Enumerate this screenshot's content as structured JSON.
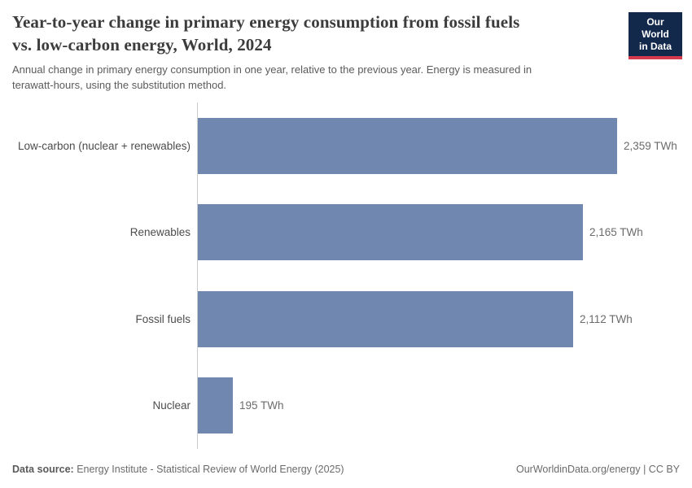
{
  "header": {
    "title_lines": [
      "Year-to-year change in primary energy consumption from fossil fuels",
      "vs. low-carbon energy, World, 2024"
    ],
    "subtitle_lines": [
      "Annual change in primary energy consumption in one year, relative to the previous year. Energy is measured in",
      "terawatt-hours, using the substitution method."
    ],
    "logo": {
      "line1": "Our World",
      "line2": "in Data",
      "background": "#12294b",
      "accent": "#d43a4b"
    }
  },
  "chart_data": {
    "type": "bar",
    "orientation": "horizontal",
    "title": "Year-to-year change in primary energy consumption from fossil fuels vs. low-carbon energy, World, 2024",
    "categories": [
      "Low-carbon (nuclear + renewables)",
      "Renewables",
      "Fossil fuels",
      "Nuclear"
    ],
    "values": [
      2359,
      2165,
      2112,
      195
    ],
    "value_labels": [
      "2,359 TWh",
      "2,165 TWh",
      "2,112 TWh",
      "195 TWh"
    ],
    "unit": "TWh",
    "xlim": [
      0,
      2359
    ],
    "grid": false,
    "legend": "none",
    "bar_color": "#7088b0"
  },
  "footer": {
    "data_source_label": "Data source:",
    "data_source_value": " Energy Institute - Statistical Review of World Energy (2025)",
    "attribution": "OurWorldinData.org/energy | CC BY"
  },
  "colors": {
    "bar": "#7088b0",
    "title": "#3c3c3c",
    "subtitle": "#5b5b5b",
    "category_label": "#4c4c4c",
    "value_label": "#6b6b6b",
    "axis": "#cccccc"
  }
}
